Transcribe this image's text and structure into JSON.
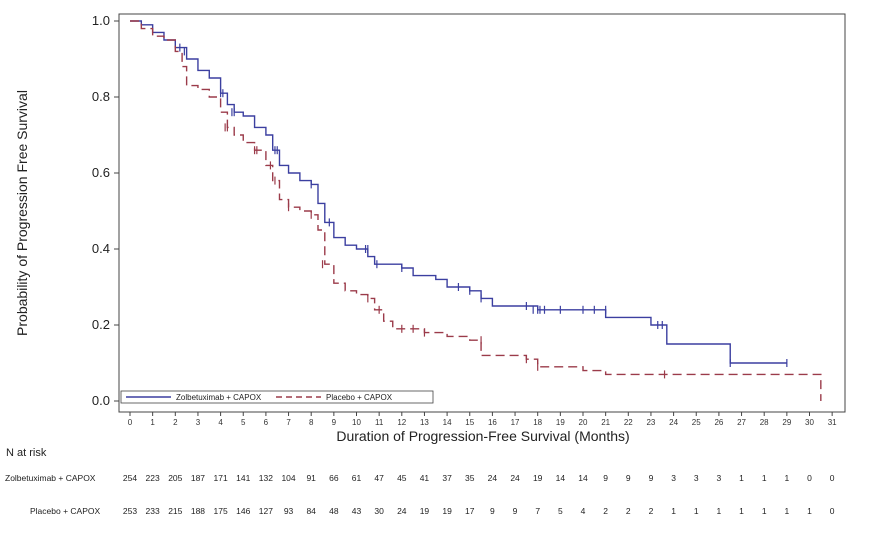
{
  "chart_data": {
    "type": "line",
    "subtype": "kaplan-meier",
    "ylabel": "Probability of Progression Free Survival",
    "xlabel": "Duration of Progression-Free Survival (Months)",
    "xlim": [
      0,
      31
    ],
    "ylim": [
      0.0,
      1.0
    ],
    "x_ticks": [
      0,
      1,
      2,
      3,
      4,
      5,
      6,
      7,
      8,
      9,
      10,
      11,
      12,
      13,
      14,
      15,
      16,
      17,
      18,
      19,
      20,
      21,
      22,
      23,
      24,
      25,
      26,
      27,
      28,
      29,
      30,
      31
    ],
    "y_ticks": [
      "0.0",
      "0.2",
      "0.4",
      "0.6",
      "0.8",
      "1.0"
    ],
    "grid": false,
    "legend_position": "bottom-left",
    "series": [
      {
        "name": "Zolbetuximab + CAPOX",
        "color": "#3b3fa0",
        "dash": "solid",
        "steps": [
          [
            0,
            1.0
          ],
          [
            0.5,
            0.99
          ],
          [
            1.0,
            0.97
          ],
          [
            1.5,
            0.95
          ],
          [
            2.0,
            0.93
          ],
          [
            2.5,
            0.9
          ],
          [
            3.0,
            0.87
          ],
          [
            3.5,
            0.85
          ],
          [
            4.0,
            0.81
          ],
          [
            4.3,
            0.78
          ],
          [
            4.6,
            0.76
          ],
          [
            5.0,
            0.75
          ],
          [
            5.5,
            0.72
          ],
          [
            6.0,
            0.7
          ],
          [
            6.3,
            0.66
          ],
          [
            6.6,
            0.62
          ],
          [
            7.0,
            0.6
          ],
          [
            7.5,
            0.58
          ],
          [
            8.0,
            0.57
          ],
          [
            8.3,
            0.52
          ],
          [
            8.6,
            0.47
          ],
          [
            9.0,
            0.43
          ],
          [
            9.5,
            0.41
          ],
          [
            10.0,
            0.4
          ],
          [
            10.5,
            0.38
          ],
          [
            10.8,
            0.36
          ],
          [
            12.0,
            0.35
          ],
          [
            12.5,
            0.33
          ],
          [
            13.5,
            0.32
          ],
          [
            14.0,
            0.3
          ],
          [
            15.0,
            0.29
          ],
          [
            15.5,
            0.27
          ],
          [
            16.0,
            0.25
          ],
          [
            17.5,
            0.25
          ],
          [
            18.0,
            0.24
          ],
          [
            19.0,
            0.24
          ],
          [
            20.5,
            0.24
          ],
          [
            21.0,
            0.22
          ],
          [
            23.0,
            0.2
          ],
          [
            23.7,
            0.15
          ],
          [
            26.5,
            0.1
          ],
          [
            29.0,
            0.1
          ]
        ],
        "censors": [
          2.2,
          2.4,
          4.0,
          4.1,
          4.5,
          4.6,
          6.4,
          6.5,
          8.0,
          8.8,
          10.4,
          10.5,
          10.9,
          12.0,
          14.5,
          15.0,
          15.5,
          17.5,
          17.8,
          18.0,
          18.1,
          18.3,
          19.0,
          20.0,
          20.5,
          21.0,
          23.3,
          23.5,
          26.5,
          29.0
        ],
        "censor_y": [
          0.93,
          0.92,
          0.81,
          0.81,
          0.76,
          0.76,
          0.66,
          0.66,
          0.57,
          0.47,
          0.4,
          0.4,
          0.36,
          0.35,
          0.3,
          0.29,
          0.27,
          0.25,
          0.24,
          0.24,
          0.24,
          0.24,
          0.24,
          0.24,
          0.24,
          0.24,
          0.2,
          0.2,
          0.1,
          0.1
        ]
      },
      {
        "name": "Placebo + CAPOX",
        "color": "#9b3b4a",
        "dash": "dashed",
        "steps": [
          [
            0,
            1.0
          ],
          [
            0.5,
            0.98
          ],
          [
            1.0,
            0.96
          ],
          [
            1.5,
            0.95
          ],
          [
            2.0,
            0.92
          ],
          [
            2.3,
            0.88
          ],
          [
            2.5,
            0.83
          ],
          [
            3.0,
            0.82
          ],
          [
            3.5,
            0.8
          ],
          [
            4.0,
            0.76
          ],
          [
            4.3,
            0.72
          ],
          [
            4.6,
            0.7
          ],
          [
            5.0,
            0.68
          ],
          [
            5.5,
            0.66
          ],
          [
            6.0,
            0.62
          ],
          [
            6.3,
            0.58
          ],
          [
            6.6,
            0.53
          ],
          [
            7.0,
            0.51
          ],
          [
            7.5,
            0.5
          ],
          [
            8.0,
            0.49
          ],
          [
            8.3,
            0.45
          ],
          [
            8.6,
            0.36
          ],
          [
            9.0,
            0.31
          ],
          [
            9.5,
            0.29
          ],
          [
            10.0,
            0.28
          ],
          [
            10.5,
            0.27
          ],
          [
            10.8,
            0.24
          ],
          [
            11.2,
            0.21
          ],
          [
            11.6,
            0.19
          ],
          [
            12.5,
            0.19
          ],
          [
            13.0,
            0.18
          ],
          [
            14.0,
            0.17
          ],
          [
            15.0,
            0.16
          ],
          [
            15.5,
            0.12
          ],
          [
            17.5,
            0.11
          ],
          [
            18.0,
            0.09
          ],
          [
            19.0,
            0.09
          ],
          [
            20.0,
            0.08
          ],
          [
            21.0,
            0.07
          ],
          [
            23.5,
            0.07
          ],
          [
            30.5,
            0.07
          ],
          [
            30.5,
            0.0
          ]
        ],
        "censors": [
          4.2,
          4.3,
          5.5,
          5.6,
          6.2,
          6.4,
          7.0,
          8.0,
          8.5,
          10.5,
          11.0,
          12.0,
          12.5,
          13.0,
          15.5,
          17.5,
          18.0,
          23.6
        ],
        "censor_y": [
          0.72,
          0.72,
          0.66,
          0.66,
          0.62,
          0.58,
          0.51,
          0.49,
          0.36,
          0.27,
          0.24,
          0.19,
          0.19,
          0.18,
          0.16,
          0.11,
          0.09,
          0.07
        ]
      }
    ],
    "risk_table": {
      "title": "N at risk",
      "rows": [
        {
          "label": "Zolbetuximab + CAPOX",
          "values": [
            "254",
            "223",
            "205",
            "187",
            "171",
            "141",
            "132",
            "104",
            "91",
            "66",
            "61",
            "47",
            "45",
            "41",
            "37",
            "35",
            "24",
            "24",
            "19",
            "14",
            "14",
            "9",
            "9",
            "9",
            "3",
            "3",
            "3",
            "1",
            "1",
            "1",
            "0",
            "0"
          ]
        },
        {
          "label": "Placebo + CAPOX",
          "values": [
            "253",
            "233",
            "215",
            "188",
            "175",
            "146",
            "127",
            "93",
            "84",
            "48",
            "43",
            "30",
            "24",
            "19",
            "19",
            "17",
            "9",
            "9",
            "7",
            "5",
            "4",
            "2",
            "2",
            "2",
            "1",
            "1",
            "1",
            "1",
            "1",
            "1",
            "1",
            "0"
          ]
        }
      ]
    }
  }
}
